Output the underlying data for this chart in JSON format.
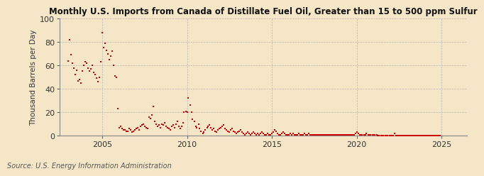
{
  "title": "Monthly U.S. Imports from Canada of Distillate Fuel Oil, Greater than 15 to 500 ppm Sulfur",
  "ylabel": "Thousand Barrels per Day",
  "source": "Source: U.S. Energy Information Administration",
  "background_color": "#f5e6c8",
  "plot_bg_color": "#f5e6c8",
  "marker_color": "#cc0000",
  "marker_size": 4,
  "xlim": [
    2002.5,
    2026.5
  ],
  "ylim": [
    0,
    100
  ],
  "yticks": [
    0,
    20,
    40,
    60,
    80,
    100
  ],
  "xticks": [
    2005,
    2010,
    2015,
    2020,
    2025
  ],
  "data": [
    [
      2003.0,
      64
    ],
    [
      2003.08,
      82
    ],
    [
      2003.17,
      69
    ],
    [
      2003.25,
      62
    ],
    [
      2003.33,
      58
    ],
    [
      2003.42,
      52
    ],
    [
      2003.5,
      56
    ],
    [
      2003.58,
      47
    ],
    [
      2003.67,
      48
    ],
    [
      2003.75,
      45
    ],
    [
      2003.83,
      55
    ],
    [
      2003.92,
      60
    ],
    [
      2004.0,
      63
    ],
    [
      2004.08,
      62
    ],
    [
      2004.17,
      58
    ],
    [
      2004.25,
      55
    ],
    [
      2004.33,
      57
    ],
    [
      2004.42,
      60
    ],
    [
      2004.5,
      54
    ],
    [
      2004.58,
      52
    ],
    [
      2004.67,
      49
    ],
    [
      2004.75,
      46
    ],
    [
      2004.83,
      50
    ],
    [
      2004.92,
      63
    ],
    [
      2005.0,
      88
    ],
    [
      2005.08,
      75
    ],
    [
      2005.17,
      79
    ],
    [
      2005.25,
      73
    ],
    [
      2005.33,
      70
    ],
    [
      2005.42,
      65
    ],
    [
      2005.5,
      68
    ],
    [
      2005.58,
      72
    ],
    [
      2005.67,
      60
    ],
    [
      2005.75,
      51
    ],
    [
      2005.83,
      50
    ],
    [
      2005.92,
      23
    ],
    [
      2006.0,
      7
    ],
    [
      2006.08,
      8
    ],
    [
      2006.17,
      6
    ],
    [
      2006.25,
      5
    ],
    [
      2006.33,
      5
    ],
    [
      2006.42,
      4
    ],
    [
      2006.5,
      4
    ],
    [
      2006.58,
      6
    ],
    [
      2006.67,
      5
    ],
    [
      2006.75,
      3
    ],
    [
      2006.83,
      4
    ],
    [
      2006.92,
      5
    ],
    [
      2007.0,
      6
    ],
    [
      2007.08,
      7
    ],
    [
      2007.17,
      5
    ],
    [
      2007.25,
      8
    ],
    [
      2007.33,
      9
    ],
    [
      2007.42,
      10
    ],
    [
      2007.5,
      8
    ],
    [
      2007.58,
      7
    ],
    [
      2007.67,
      6
    ],
    [
      2007.75,
      16
    ],
    [
      2007.83,
      15
    ],
    [
      2007.92,
      18
    ],
    [
      2008.0,
      25
    ],
    [
      2008.08,
      12
    ],
    [
      2008.17,
      10
    ],
    [
      2008.25,
      8
    ],
    [
      2008.33,
      9
    ],
    [
      2008.42,
      7
    ],
    [
      2008.5,
      10
    ],
    [
      2008.58,
      9
    ],
    [
      2008.67,
      11
    ],
    [
      2008.75,
      8
    ],
    [
      2008.83,
      7
    ],
    [
      2008.92,
      6
    ],
    [
      2009.0,
      5
    ],
    [
      2009.08,
      8
    ],
    [
      2009.17,
      9
    ],
    [
      2009.25,
      7
    ],
    [
      2009.33,
      10
    ],
    [
      2009.42,
      12
    ],
    [
      2009.5,
      8
    ],
    [
      2009.58,
      6
    ],
    [
      2009.67,
      8
    ],
    [
      2009.75,
      11
    ],
    [
      2009.83,
      20
    ],
    [
      2009.92,
      21
    ],
    [
      2010.0,
      20
    ],
    [
      2010.08,
      32
    ],
    [
      2010.17,
      26
    ],
    [
      2010.25,
      20
    ],
    [
      2010.33,
      14
    ],
    [
      2010.42,
      12
    ],
    [
      2010.5,
      8
    ],
    [
      2010.58,
      7
    ],
    [
      2010.67,
      10
    ],
    [
      2010.75,
      6
    ],
    [
      2010.83,
      4
    ],
    [
      2010.92,
      2
    ],
    [
      2011.0,
      3
    ],
    [
      2011.08,
      5
    ],
    [
      2011.17,
      7
    ],
    [
      2011.25,
      8
    ],
    [
      2011.33,
      9
    ],
    [
      2011.42,
      7
    ],
    [
      2011.5,
      5
    ],
    [
      2011.58,
      6
    ],
    [
      2011.67,
      4
    ],
    [
      2011.75,
      3
    ],
    [
      2011.83,
      5
    ],
    [
      2011.92,
      6
    ],
    [
      2012.0,
      7
    ],
    [
      2012.08,
      8
    ],
    [
      2012.17,
      9
    ],
    [
      2012.25,
      6
    ],
    [
      2012.33,
      5
    ],
    [
      2012.42,
      4
    ],
    [
      2012.5,
      3
    ],
    [
      2012.58,
      5
    ],
    [
      2012.67,
      6
    ],
    [
      2012.75,
      4
    ],
    [
      2012.83,
      3
    ],
    [
      2012.92,
      2
    ],
    [
      2013.0,
      3
    ],
    [
      2013.08,
      4
    ],
    [
      2013.17,
      5
    ],
    [
      2013.25,
      3
    ],
    [
      2013.33,
      2
    ],
    [
      2013.42,
      1
    ],
    [
      2013.5,
      2
    ],
    [
      2013.58,
      3
    ],
    [
      2013.67,
      2
    ],
    [
      2013.75,
      1
    ],
    [
      2013.83,
      2
    ],
    [
      2013.92,
      3
    ],
    [
      2014.0,
      2
    ],
    [
      2014.08,
      1
    ],
    [
      2014.17,
      2
    ],
    [
      2014.25,
      1
    ],
    [
      2014.33,
      2
    ],
    [
      2014.42,
      3
    ],
    [
      2014.5,
      2
    ],
    [
      2014.58,
      1
    ],
    [
      2014.67,
      1
    ],
    [
      2014.75,
      2
    ],
    [
      2014.83,
      1
    ],
    [
      2014.92,
      1
    ],
    [
      2015.0,
      2
    ],
    [
      2015.08,
      3
    ],
    [
      2015.17,
      5
    ],
    [
      2015.25,
      4
    ],
    [
      2015.33,
      2
    ],
    [
      2015.42,
      1
    ],
    [
      2015.5,
      1
    ],
    [
      2015.58,
      2
    ],
    [
      2015.67,
      3
    ],
    [
      2015.75,
      2
    ],
    [
      2015.83,
      1
    ],
    [
      2015.92,
      1
    ],
    [
      2016.0,
      1
    ],
    [
      2016.08,
      2
    ],
    [
      2016.17,
      1
    ],
    [
      2016.25,
      2
    ],
    [
      2016.33,
      1
    ],
    [
      2016.42,
      1
    ],
    [
      2016.5,
      1
    ],
    [
      2016.58,
      2
    ],
    [
      2016.67,
      1
    ],
    [
      2016.75,
      1
    ],
    [
      2016.83,
      1
    ],
    [
      2016.92,
      2
    ],
    [
      2017.0,
      1
    ],
    [
      2017.08,
      1
    ],
    [
      2017.17,
      2
    ],
    [
      2017.25,
      1
    ],
    [
      2017.33,
      1
    ],
    [
      2017.42,
      1
    ],
    [
      2017.5,
      1
    ],
    [
      2017.58,
      1
    ],
    [
      2017.67,
      1
    ],
    [
      2017.75,
      1
    ],
    [
      2017.83,
      1
    ],
    [
      2017.92,
      1
    ],
    [
      2018.0,
      1
    ],
    [
      2018.08,
      1
    ],
    [
      2018.17,
      1
    ],
    [
      2018.25,
      1
    ],
    [
      2018.33,
      1
    ],
    [
      2018.42,
      1
    ],
    [
      2018.5,
      1
    ],
    [
      2018.58,
      1
    ],
    [
      2018.67,
      1
    ],
    [
      2018.75,
      1
    ],
    [
      2018.83,
      1
    ],
    [
      2018.92,
      1
    ],
    [
      2019.0,
      1
    ],
    [
      2019.08,
      1
    ],
    [
      2019.17,
      1
    ],
    [
      2019.25,
      1
    ],
    [
      2019.33,
      1
    ],
    [
      2019.42,
      1
    ],
    [
      2019.5,
      1
    ],
    [
      2019.58,
      1
    ],
    [
      2019.67,
      1
    ],
    [
      2019.75,
      1
    ],
    [
      2019.83,
      1
    ],
    [
      2019.92,
      2
    ],
    [
      2020.0,
      3
    ],
    [
      2020.08,
      2
    ],
    [
      2020.17,
      1
    ],
    [
      2020.25,
      1
    ],
    [
      2020.33,
      1
    ],
    [
      2020.42,
      1
    ],
    [
      2020.5,
      1
    ],
    [
      2020.58,
      2
    ],
    [
      2020.67,
      1
    ],
    [
      2020.75,
      1
    ],
    [
      2020.83,
      1
    ],
    [
      2020.92,
      1
    ],
    [
      2021.0,
      1
    ],
    [
      2021.08,
      1
    ],
    [
      2021.17,
      1
    ],
    [
      2021.25,
      0
    ],
    [
      2021.33,
      0
    ],
    [
      2021.42,
      0
    ],
    [
      2021.5,
      0
    ],
    [
      2021.58,
      0
    ],
    [
      2021.67,
      0
    ],
    [
      2021.75,
      0
    ],
    [
      2021.83,
      0
    ],
    [
      2021.92,
      0
    ],
    [
      2022.0,
      0
    ],
    [
      2022.08,
      0
    ],
    [
      2022.17,
      0
    ],
    [
      2022.25,
      2
    ],
    [
      2022.33,
      0
    ],
    [
      2022.42,
      0
    ],
    [
      2022.5,
      0
    ],
    [
      2022.58,
      0
    ],
    [
      2022.67,
      0
    ],
    [
      2022.75,
      0
    ],
    [
      2022.83,
      0
    ],
    [
      2022.92,
      0
    ],
    [
      2023.0,
      0
    ],
    [
      2023.08,
      0
    ],
    [
      2023.17,
      0
    ],
    [
      2023.25,
      0
    ],
    [
      2023.33,
      0
    ],
    [
      2023.42,
      0
    ],
    [
      2023.5,
      0
    ],
    [
      2023.58,
      0
    ],
    [
      2023.67,
      0
    ],
    [
      2023.75,
      0
    ],
    [
      2023.83,
      0
    ],
    [
      2023.92,
      0
    ],
    [
      2024.0,
      0
    ],
    [
      2024.08,
      0
    ],
    [
      2024.17,
      0
    ],
    [
      2024.25,
      0
    ],
    [
      2024.33,
      0
    ],
    [
      2024.42,
      0
    ],
    [
      2024.5,
      0
    ],
    [
      2024.58,
      0
    ],
    [
      2024.67,
      0
    ],
    [
      2024.75,
      0
    ],
    [
      2024.83,
      0
    ],
    [
      2024.92,
      0
    ]
  ]
}
